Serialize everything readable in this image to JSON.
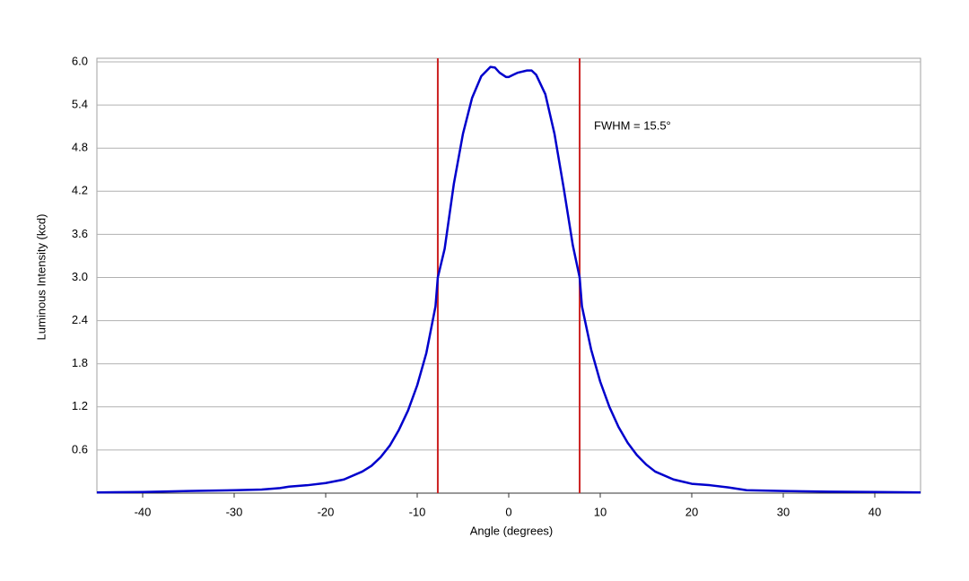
{
  "chart_data": {
    "type": "line",
    "xlabel": "Angle (degrees)",
    "ylabel": "Luminous Intensity (kcd)",
    "annotation": "FWHM = 15.5°",
    "x": [
      -45,
      -40,
      -35,
      -30,
      -27,
      -25,
      -24,
      -22,
      -20,
      -18,
      -16,
      -15,
      -14,
      -13,
      -12,
      -11,
      -10,
      -9,
      -8,
      -7.75,
      -7,
      -6,
      -5,
      -4,
      -3,
      -2,
      -1.5,
      -1,
      -0.3,
      0,
      0.5,
      1,
      2,
      2.5,
      3,
      4,
      5,
      6,
      7,
      7.75,
      8,
      9,
      10,
      11,
      12,
      13,
      14,
      15,
      16,
      18,
      20,
      22,
      24,
      26,
      30,
      35,
      40,
      45
    ],
    "series": [
      {
        "color": "#0000cc",
        "values": [
          0.01,
          0.015,
          0.03,
          0.04,
          0.05,
          0.07,
          0.09,
          0.11,
          0.14,
          0.19,
          0.3,
          0.38,
          0.5,
          0.66,
          0.88,
          1.15,
          1.5,
          1.95,
          2.6,
          3.0,
          3.4,
          4.3,
          5.0,
          5.5,
          5.8,
          5.93,
          5.92,
          5.85,
          5.79,
          5.79,
          5.82,
          5.85,
          5.88,
          5.88,
          5.82,
          5.55,
          5.0,
          4.25,
          3.45,
          3.0,
          2.6,
          2.0,
          1.55,
          1.2,
          0.92,
          0.7,
          0.53,
          0.4,
          0.3,
          0.19,
          0.13,
          0.11,
          0.08,
          0.04,
          0.03,
          0.02,
          0.015,
          0.01
        ]
      }
    ],
    "vlines": {
      "color": "#cc2222",
      "x": [
        -7.75,
        7.75
      ]
    },
    "xlim": [
      -45,
      45
    ],
    "xticks": [
      -40,
      -30,
      -20,
      -10,
      0,
      10,
      20,
      30,
      40
    ],
    "ylim": [
      0,
      6
    ],
    "yticks": [
      0.6,
      1.2,
      1.8,
      2.4,
      {
        "value": 3,
        "label": "3.0"
      },
      3.6,
      4.2,
      4.8,
      5.4,
      {
        "value": 6,
        "label": "6.0"
      }
    ],
    "grid": true
  }
}
